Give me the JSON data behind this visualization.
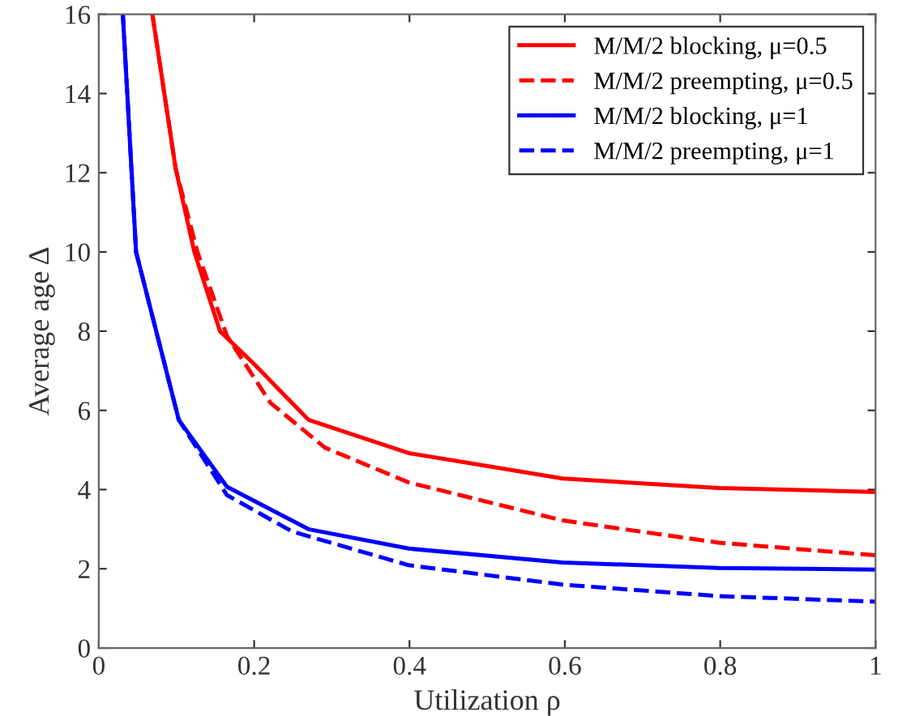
{
  "chart_data": {
    "type": "line",
    "xlabel": "Utilization ρ",
    "ylabel": "Average age Δ",
    "xlim": [
      0,
      1
    ],
    "ylim": [
      0,
      16
    ],
    "xticks": [
      0,
      0.2,
      0.4,
      0.6,
      0.8,
      1
    ],
    "yticks": [
      0,
      2,
      4,
      6,
      8,
      10,
      12,
      14,
      16
    ],
    "grid": false,
    "legend": "top right",
    "marker": "none",
    "series": [
      {
        "name": "M/M/2 blocking, μ=0.5",
        "color": "#ff0000",
        "line_style": "solid",
        "x": [
          0.069,
          0.099,
          0.123,
          0.156,
          0.2,
          0.27,
          0.399,
          0.597,
          0.798,
          1.0
        ],
        "values": [
          16,
          12.1,
          10,
          8,
          7.17,
          5.76,
          4.92,
          4.28,
          4.04,
          3.94
        ]
      },
      {
        "name": "M/M/2 preempting, μ=0.5",
        "color": "#ff0000",
        "line_style": "dashed",
        "x": [
          0.069,
          0.099,
          0.127,
          0.165,
          0.221,
          0.291,
          0.399,
          0.597,
          0.798,
          1.0
        ],
        "values": [
          16,
          12.1,
          10,
          7.88,
          6.19,
          5.06,
          4.18,
          3.22,
          2.66,
          2.34
        ]
      },
      {
        "name": "M/M/2 blocking, μ=1",
        "color": "#0000ff",
        "line_style": "solid",
        "x": [
          0.031,
          0.048,
          0.103,
          0.165,
          0.27,
          0.399,
          0.597,
          0.798,
          1.0
        ],
        "values": [
          16,
          10,
          5.76,
          4.07,
          3.0,
          2.51,
          2.16,
          2.02,
          1.98
        ]
      },
      {
        "name": "M/M/2 preempting, μ=1",
        "color": "#0000ff",
        "line_style": "dashed",
        "x": [
          0.031,
          0.048,
          0.103,
          0.165,
          0.249,
          0.399,
          0.597,
          0.798,
          1.0
        ],
        "values": [
          16,
          10,
          5.76,
          3.86,
          2.94,
          2.09,
          1.6,
          1.31,
          1.17
        ]
      }
    ]
  }
}
